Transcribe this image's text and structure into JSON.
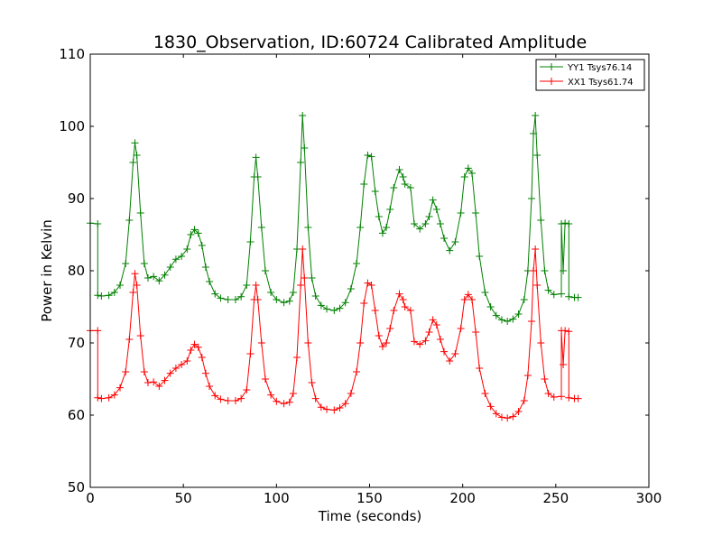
{
  "chart_data": {
    "type": "line",
    "title": "1830_Observation, ID:60724 Calibrated Amplitude",
    "xlabel": "Time (seconds)",
    "ylabel": "Power in Kelvin",
    "xlim": [
      0,
      300
    ],
    "ylim": [
      50,
      110
    ],
    "xticks": [
      0,
      50,
      100,
      150,
      200,
      250,
      300
    ],
    "yticks": [
      50,
      60,
      70,
      80,
      90,
      100,
      110
    ],
    "grid": false,
    "legend_position": "top-right",
    "marker": "plus",
    "series": [
      {
        "name": "YY1 Tsys76.14",
        "color": "#008000",
        "points": [
          [
            0,
            86.6
          ],
          [
            4,
            86.5
          ],
          [
            4,
            76.6
          ],
          [
            6,
            76.5
          ],
          [
            10,
            76.6
          ],
          [
            13,
            77.0
          ],
          [
            16,
            78.0
          ],
          [
            19,
            81.0
          ],
          [
            21,
            87.0
          ],
          [
            23,
            95.0
          ],
          [
            24,
            97.7
          ],
          [
            25,
            96.0
          ],
          [
            27,
            88.0
          ],
          [
            29,
            81.0
          ],
          [
            31,
            79.0
          ],
          [
            34,
            79.2
          ],
          [
            37,
            78.6
          ],
          [
            40,
            79.4
          ],
          [
            43,
            80.5
          ],
          [
            46,
            81.6
          ],
          [
            49,
            82.0
          ],
          [
            52,
            83.0
          ],
          [
            54,
            85.0
          ],
          [
            56,
            85.7
          ],
          [
            58,
            85.2
          ],
          [
            60,
            83.5
          ],
          [
            62,
            80.5
          ],
          [
            64,
            78.5
          ],
          [
            67,
            76.8
          ],
          [
            70,
            76.2
          ],
          [
            74,
            76.0
          ],
          [
            78,
            76.0
          ],
          [
            81,
            76.4
          ],
          [
            84,
            78.0
          ],
          [
            86,
            84.0
          ],
          [
            88,
            93.0
          ],
          [
            89,
            95.7
          ],
          [
            90,
            93.0
          ],
          [
            92,
            86.0
          ],
          [
            94,
            80.0
          ],
          [
            97,
            77.0
          ],
          [
            100,
            76.0
          ],
          [
            104,
            75.6
          ],
          [
            107,
            75.8
          ],
          [
            109,
            77.0
          ],
          [
            111,
            83.0
          ],
          [
            113,
            95.0
          ],
          [
            114,
            101.5
          ],
          [
            115,
            97.0
          ],
          [
            117,
            86.0
          ],
          [
            119,
            79.0
          ],
          [
            121,
            76.5
          ],
          [
            124,
            75.2
          ],
          [
            127,
            74.7
          ],
          [
            131,
            74.5
          ],
          [
            134,
            74.8
          ],
          [
            137,
            75.6
          ],
          [
            140,
            77.5
          ],
          [
            143,
            81.0
          ],
          [
            145,
            86.0
          ],
          [
            147,
            92.0
          ],
          [
            149,
            96.0
          ],
          [
            151,
            95.8
          ],
          [
            153,
            91.0
          ],
          [
            155,
            87.5
          ],
          [
            157,
            85.2
          ],
          [
            159,
            86.0
          ],
          [
            161,
            88.5
          ],
          [
            163,
            91.5
          ],
          [
            166,
            94.0
          ],
          [
            168,
            93.0
          ],
          [
            169,
            92.0
          ],
          [
            172,
            91.5
          ],
          [
            174,
            86.5
          ],
          [
            177,
            85.8
          ],
          [
            180,
            86.5
          ],
          [
            182,
            87.5
          ],
          [
            184,
            89.8
          ],
          [
            186,
            88.5
          ],
          [
            188,
            86.5
          ],
          [
            190,
            84.5
          ],
          [
            193,
            82.8
          ],
          [
            196,
            84.0
          ],
          [
            199,
            88.0
          ],
          [
            201,
            93.0
          ],
          [
            203,
            94.2
          ],
          [
            205,
            93.5
          ],
          [
            207,
            88.0
          ],
          [
            209,
            82.0
          ],
          [
            212,
            77.0
          ],
          [
            215,
            75.0
          ],
          [
            218,
            73.8
          ],
          [
            221,
            73.2
          ],
          [
            224,
            73.0
          ],
          [
            227,
            73.3
          ],
          [
            230,
            74.0
          ],
          [
            233,
            76.0
          ],
          [
            235,
            80.0
          ],
          [
            237,
            90.0
          ],
          [
            238,
            99.0
          ],
          [
            239,
            101.5
          ],
          [
            240,
            96.0
          ],
          [
            242,
            87.0
          ],
          [
            244,
            80.0
          ],
          [
            246,
            77.3
          ],
          [
            249,
            76.7
          ],
          [
            253,
            76.8
          ],
          [
            253,
            86.5
          ],
          [
            254,
            80.0
          ],
          [
            255,
            86.6
          ],
          [
            257,
            86.5
          ],
          [
            257,
            76.4
          ],
          [
            260,
            76.3
          ],
          [
            262,
            76.3
          ]
        ]
      },
      {
        "name": "XX1 Tsys61.74",
        "color": "#ff0000",
        "points": [
          [
            0,
            71.7
          ],
          [
            4,
            71.7
          ],
          [
            4,
            62.4
          ],
          [
            6,
            62.3
          ],
          [
            10,
            62.4
          ],
          [
            13,
            62.8
          ],
          [
            16,
            63.8
          ],
          [
            19,
            66.0
          ],
          [
            21,
            70.5
          ],
          [
            23,
            77.0
          ],
          [
            24,
            79.6
          ],
          [
            25,
            78.0
          ],
          [
            27,
            71.0
          ],
          [
            29,
            66.0
          ],
          [
            31,
            64.5
          ],
          [
            34,
            64.6
          ],
          [
            37,
            64.0
          ],
          [
            40,
            64.8
          ],
          [
            43,
            65.8
          ],
          [
            46,
            66.5
          ],
          [
            49,
            67.0
          ],
          [
            52,
            67.5
          ],
          [
            54,
            69.0
          ],
          [
            56,
            69.8
          ],
          [
            58,
            69.4
          ],
          [
            60,
            68.0
          ],
          [
            62,
            65.8
          ],
          [
            64,
            64.0
          ],
          [
            67,
            62.7
          ],
          [
            70,
            62.2
          ],
          [
            74,
            62.0
          ],
          [
            78,
            62.0
          ],
          [
            81,
            62.3
          ],
          [
            84,
            63.5
          ],
          [
            86,
            68.5
          ],
          [
            88,
            76.0
          ],
          [
            89,
            78.0
          ],
          [
            90,
            76.0
          ],
          [
            92,
            70.0
          ],
          [
            94,
            65.0
          ],
          [
            97,
            62.8
          ],
          [
            100,
            61.9
          ],
          [
            104,
            61.6
          ],
          [
            107,
            61.8
          ],
          [
            109,
            63.0
          ],
          [
            111,
            68.0
          ],
          [
            113,
            78.0
          ],
          [
            114,
            83.0
          ],
          [
            115,
            79.0
          ],
          [
            117,
            70.0
          ],
          [
            119,
            64.5
          ],
          [
            121,
            62.3
          ],
          [
            124,
            61.1
          ],
          [
            127,
            60.8
          ],
          [
            131,
            60.7
          ],
          [
            134,
            61.0
          ],
          [
            137,
            61.6
          ],
          [
            140,
            63.0
          ],
          [
            143,
            66.0
          ],
          [
            145,
            70.0
          ],
          [
            147,
            75.5
          ],
          [
            149,
            78.3
          ],
          [
            151,
            78.0
          ],
          [
            153,
            74.5
          ],
          [
            155,
            71.0
          ],
          [
            157,
            69.5
          ],
          [
            159,
            70.0
          ],
          [
            161,
            72.0
          ],
          [
            163,
            74.5
          ],
          [
            166,
            76.8
          ],
          [
            168,
            76.0
          ],
          [
            169,
            75.0
          ],
          [
            172,
            74.5
          ],
          [
            174,
            70.2
          ],
          [
            177,
            69.8
          ],
          [
            180,
            70.3
          ],
          [
            182,
            71.5
          ],
          [
            184,
            73.2
          ],
          [
            186,
            72.5
          ],
          [
            188,
            70.5
          ],
          [
            190,
            68.8
          ],
          [
            193,
            67.5
          ],
          [
            196,
            68.5
          ],
          [
            199,
            72.0
          ],
          [
            201,
            76.0
          ],
          [
            203,
            76.7
          ],
          [
            205,
            76.0
          ],
          [
            207,
            71.5
          ],
          [
            209,
            66.5
          ],
          [
            212,
            63.0
          ],
          [
            215,
            61.2
          ],
          [
            218,
            60.2
          ],
          [
            221,
            59.7
          ],
          [
            224,
            59.6
          ],
          [
            227,
            59.8
          ],
          [
            230,
            60.5
          ],
          [
            233,
            62.0
          ],
          [
            235,
            65.5
          ],
          [
            237,
            73.0
          ],
          [
            238,
            80.0
          ],
          [
            239,
            83.0
          ],
          [
            240,
            78.0
          ],
          [
            242,
            70.0
          ],
          [
            244,
            65.0
          ],
          [
            246,
            63.0
          ],
          [
            249,
            62.5
          ],
          [
            253,
            62.6
          ],
          [
            253,
            71.7
          ],
          [
            254,
            67.0
          ],
          [
            255,
            71.7
          ],
          [
            257,
            71.6
          ],
          [
            257,
            62.4
          ],
          [
            260,
            62.3
          ],
          [
            262,
            62.3
          ]
        ]
      }
    ]
  }
}
